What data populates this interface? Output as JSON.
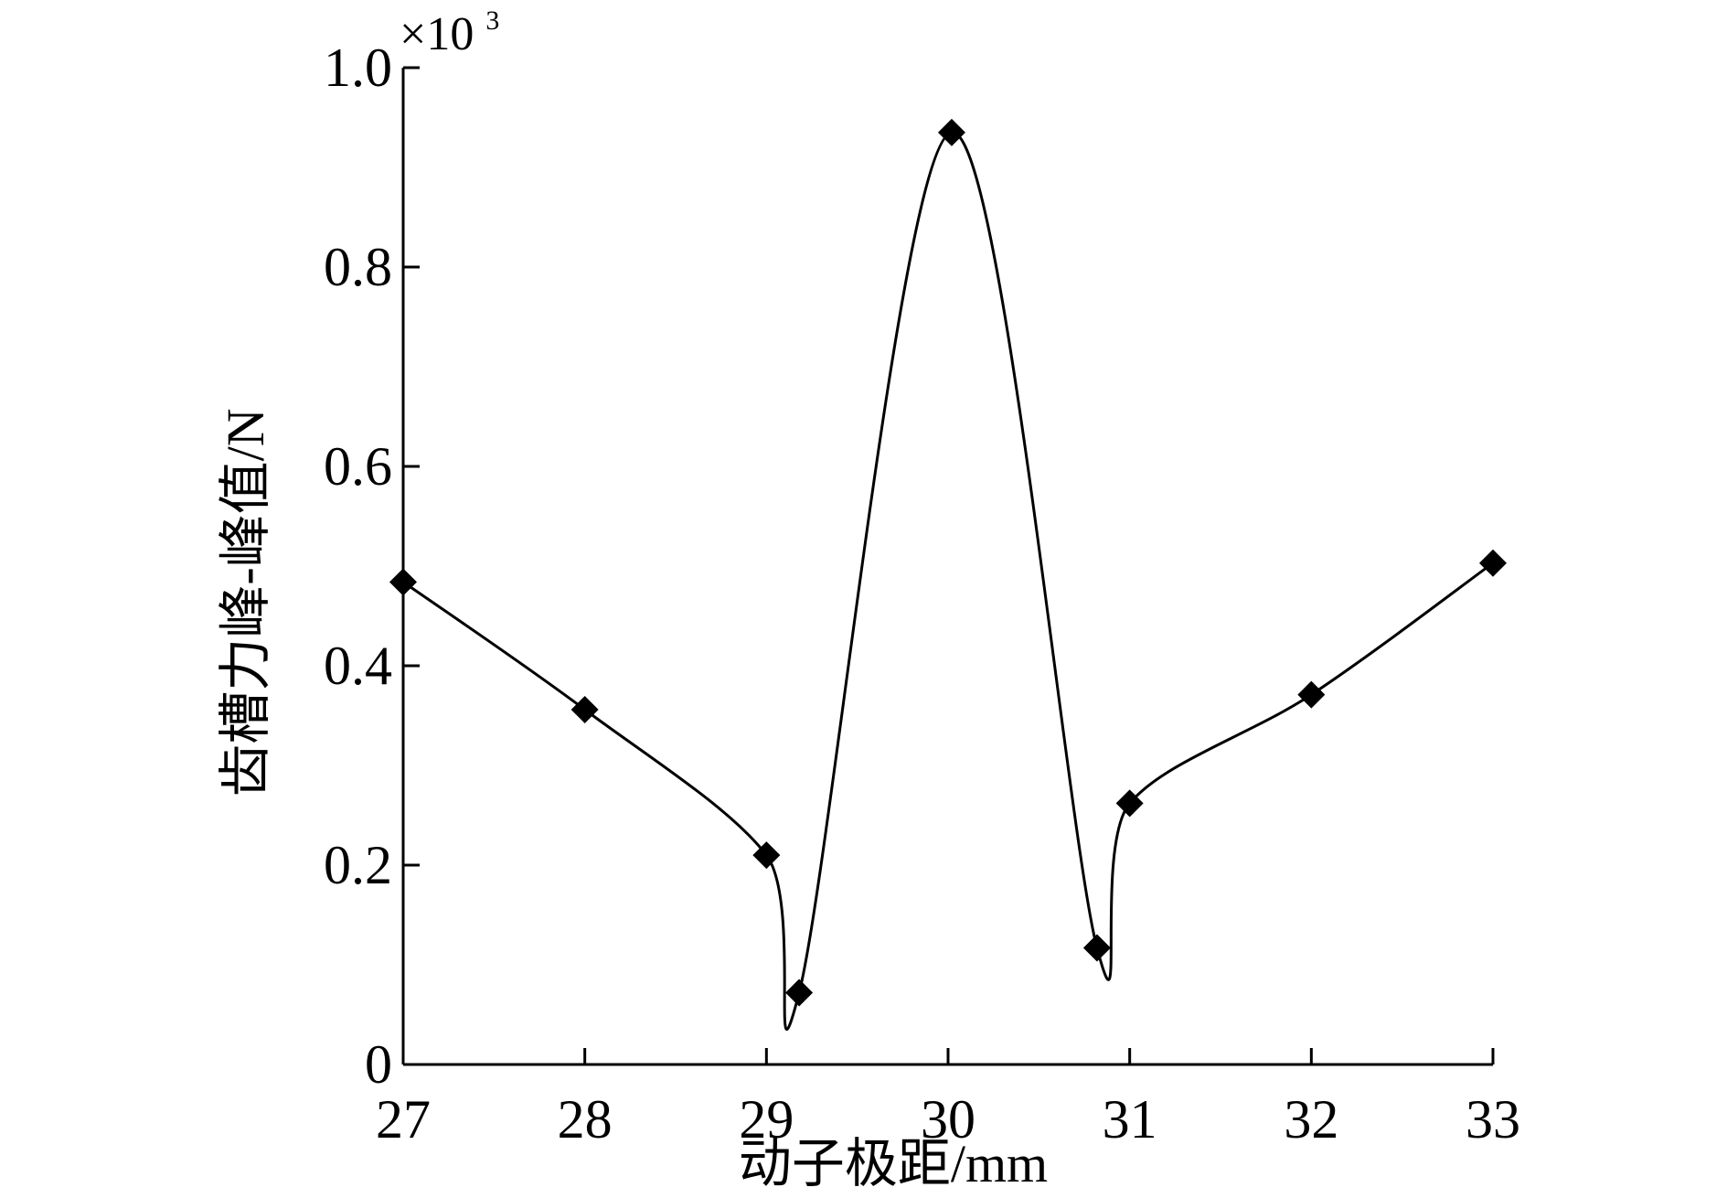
{
  "chart_data": {
    "type": "line",
    "title": "",
    "xlabel": "动子极距/mm",
    "ylabel": "齿槽力峰-峰值/N",
    "y_multiplier": {
      "base": "×10",
      "exponent": "3"
    },
    "xlim": [
      27,
      33
    ],
    "ylim": [
      0,
      1.0
    ],
    "x_ticks": [
      27,
      28,
      29,
      30,
      31,
      32,
      33
    ],
    "x_tick_labels": [
      "27",
      "28",
      "29",
      "30",
      "31",
      "32",
      "33"
    ],
    "y_ticks": [
      0,
      0.2,
      0.4,
      0.6,
      0.8,
      1.0
    ],
    "y_tick_labels": [
      "0",
      "0.2",
      "0.4",
      "0.6",
      "0.8",
      "1.0"
    ],
    "grid": false,
    "legend": "none",
    "marker": "diamond",
    "line_color": "#000000",
    "series": [
      {
        "x": [
          27.0,
          28.0,
          29.0,
          29.18,
          30.02,
          30.82,
          31.0,
          32.0,
          33.0
        ],
        "y": [
          0.484,
          0.356,
          0.21,
          0.072,
          0.935,
          0.117,
          0.262,
          0.371,
          0.503
        ]
      }
    ]
  }
}
